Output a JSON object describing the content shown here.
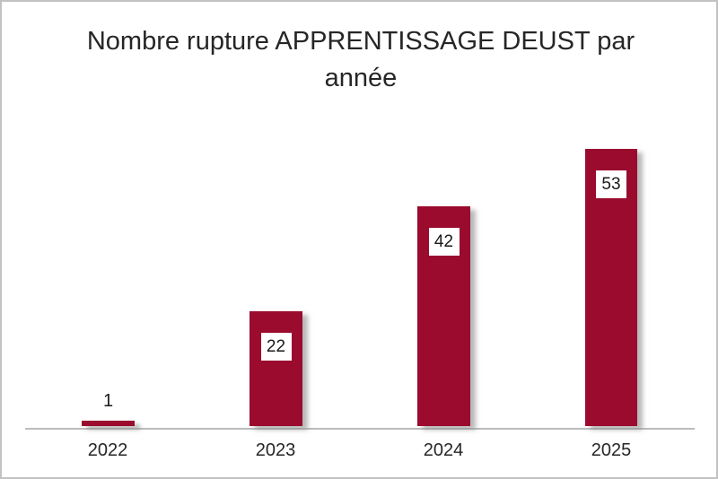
{
  "chart_data": {
    "type": "bar",
    "title": "Nombre rupture APPRENTISSAGE DEUST par année",
    "categories": [
      "2022",
      "2023",
      "2024",
      "2025"
    ],
    "values": [
      1,
      22,
      42,
      53
    ],
    "xlabel": "",
    "ylabel": "",
    "ylim": [
      0,
      55
    ],
    "grid": "off",
    "legend": "none",
    "bar_color": "#9a0b2e",
    "title_color": "#262626",
    "tick_label_color": "#262626",
    "data_label_color": "#1a1a1a",
    "data_label_background": "#ffffff",
    "frame_border_color": "#c2c2c2",
    "axis_line_color": "#bcbcbc"
  }
}
